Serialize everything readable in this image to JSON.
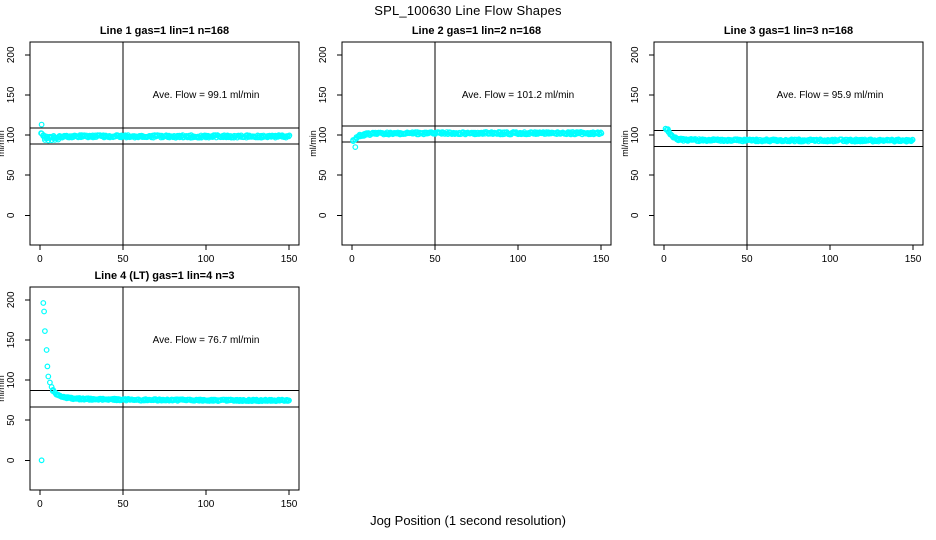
{
  "figure": {
    "title": "SPL_100630  Line Flow Shapes",
    "xlabel": "Jog Position (1 second resolution)",
    "background": "#FFFFFF",
    "marker_color": "#00FFFF",
    "line_color": "#000000"
  },
  "chart_data": [
    {
      "type": "scatter",
      "name": "line-1",
      "title": "Line 1 gas=1 lin=1 n=168",
      "annotation": "Ave. Flow =  99.1  ml/min",
      "ave_flow": 99.1,
      "n": 168,
      "ylabel": "ml/min",
      "xlim": [
        -6,
        156
      ],
      "ylim": [
        -37,
        216
      ],
      "xticks": [
        0,
        50,
        100,
        150
      ],
      "yticks": [
        0,
        50,
        100,
        150,
        200
      ],
      "vline_x": 50,
      "hlines": [
        109.1,
        89.1
      ],
      "marker_color": "#00FFFF",
      "annotation_pos": [
        100,
        150
      ],
      "points": [
        [
          1,
          113
        ],
        [
          3,
          93.8
        ],
        [
          5,
          93.2
        ],
        [
          7,
          93.6
        ],
        [
          9,
          94.0
        ],
        [
          11,
          94.3
        ]
      ],
      "band": {
        "anchors": [
          [
            1,
            101.5
          ],
          [
            2,
            98.5
          ],
          [
            4,
            97.0
          ],
          [
            7,
            97.5
          ],
          [
            12,
            98.0
          ],
          [
            30,
            98.5
          ],
          [
            80,
            98.3
          ],
          [
            150,
            98.4
          ]
        ],
        "x_start": 1,
        "x_end": 150,
        "x_step": 1,
        "per_x": 2,
        "jitter": 1.6,
        "seed": 101
      }
    },
    {
      "type": "scatter",
      "name": "line-2",
      "title": "Line 2 gas=1 lin=2 n=168",
      "annotation": "Ave. Flow =  101.2  ml/min",
      "ave_flow": 101.2,
      "n": 168,
      "ylabel": "ml/min",
      "xlim": [
        -6,
        156
      ],
      "ylim": [
        -37,
        216
      ],
      "xticks": [
        0,
        50,
        100,
        150
      ],
      "yticks": [
        0,
        50,
        100,
        150,
        200
      ],
      "vline_x": 50,
      "hlines": [
        111.2,
        91.2
      ],
      "marker_color": "#00FFFF",
      "annotation_pos": [
        100,
        150
      ],
      "points": [
        [
          2,
          85
        ]
      ],
      "band": {
        "anchors": [
          [
            1,
            92.5
          ],
          [
            2,
            95.0
          ],
          [
            3,
            97.0
          ],
          [
            4,
            98.5
          ],
          [
            6,
            100.0
          ],
          [
            9,
            101.0
          ],
          [
            14,
            101.8
          ],
          [
            40,
            102.3
          ],
          [
            150,
            102.4
          ]
        ],
        "x_start": 1,
        "x_end": 150,
        "x_step": 1,
        "per_x": 2,
        "jitter": 1.5,
        "seed": 202
      }
    },
    {
      "type": "scatter",
      "name": "line-3",
      "title": "Line 3 gas=1 lin=3 n=168",
      "annotation": "Ave. Flow =  95.9  ml/min",
      "ave_flow": 95.9,
      "n": 168,
      "ylabel": "ml/min",
      "xlim": [
        -6,
        156
      ],
      "ylim": [
        -37,
        216
      ],
      "xticks": [
        0,
        50,
        100,
        150
      ],
      "yticks": [
        0,
        50,
        100,
        150,
        200
      ],
      "vline_x": 50,
      "hlines": [
        105.9,
        85.9
      ],
      "marker_color": "#00FFFF",
      "annotation_pos": [
        100,
        150
      ],
      "points": [
        [
          1,
          108
        ],
        [
          1.6,
          106.5
        ]
      ],
      "band": {
        "anchors": [
          [
            2,
            106.5
          ],
          [
            3,
            104.0
          ],
          [
            4,
            101.0
          ],
          [
            5,
            98.5
          ],
          [
            6,
            96.8
          ],
          [
            8,
            95.2
          ],
          [
            10,
            94.4
          ],
          [
            14,
            93.9
          ],
          [
            40,
            93.4
          ],
          [
            150,
            93.2
          ]
        ],
        "x_start": 2,
        "x_end": 150,
        "x_step": 1,
        "per_x": 2,
        "jitter": 1.4,
        "seed": 303
      }
    },
    {
      "type": "scatter",
      "name": "line-4",
      "title": "Line 4 (LT) gas=1 lin=4 n=3",
      "annotation": "Ave. Flow =  76.7  ml/min",
      "ave_flow": 76.7,
      "n": 3,
      "ylabel": "ml/min",
      "xlim": [
        -6,
        156
      ],
      "ylim": [
        -37,
        216
      ],
      "xticks": [
        0,
        50,
        100,
        150
      ],
      "yticks": [
        0,
        50,
        100,
        150,
        200
      ],
      "vline_x": 50,
      "hlines": [
        86.7,
        66.7
      ],
      "marker_color": "#00FFFF",
      "annotation_pos": [
        100,
        150
      ],
      "points": [
        [
          1,
          0
        ],
        [
          2,
          196
        ],
        [
          2.5,
          185.5
        ],
        [
          3,
          161
        ],
        [
          4,
          137.5
        ],
        [
          4.5,
          117
        ],
        [
          5,
          104.5
        ],
        [
          6,
          97
        ],
        [
          7,
          91.5
        ]
      ],
      "band": {
        "anchors": [
          [
            8,
            87.0
          ],
          [
            9,
            84.5
          ],
          [
            10,
            82.5
          ],
          [
            12,
            80.0
          ],
          [
            15,
            78.3
          ],
          [
            20,
            77.0
          ],
          [
            30,
            76.2
          ],
          [
            60,
            75.3
          ],
          [
            110,
            74.8
          ],
          [
            150,
            74.6
          ]
        ],
        "x_start": 8,
        "x_end": 150,
        "x_step": 1,
        "per_x": 2,
        "jitter": 1.0,
        "seed": 404
      }
    }
  ]
}
